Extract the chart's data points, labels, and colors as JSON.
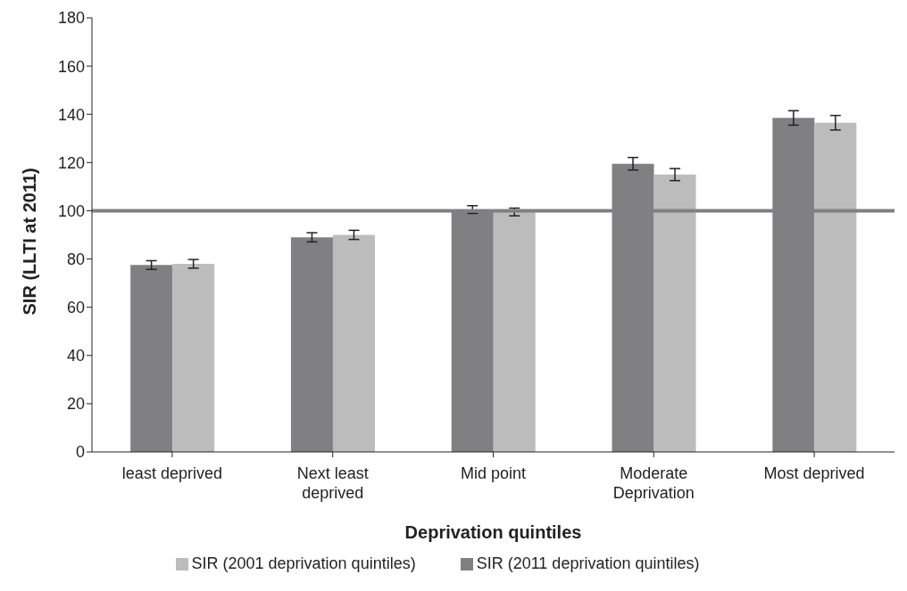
{
  "chart_data": {
    "type": "bar",
    "xlabel": "Deprivation quintiles",
    "ylabel": "SIR (LLTI at 2011)",
    "categories": [
      "least deprived",
      "Next least deprived",
      "Mid point",
      "Moderate Deprivation",
      "Most deprived"
    ],
    "series": [
      {
        "name": "SIR (2011 deprivation quintiles)",
        "color": "#808083",
        "values": [
          77.5,
          89,
          100.5,
          119.5,
          138.5
        ],
        "errors": [
          1.8,
          1.9,
          1.6,
          2.6,
          3
        ]
      },
      {
        "name": "SIR (2001 deprivation quintiles)",
        "color": "#bcbcbd",
        "values": [
          78,
          90,
          99.5,
          115,
          136.5
        ],
        "errors": [
          1.8,
          1.9,
          1.6,
          2.5,
          3
        ]
      }
    ],
    "ylim": [
      0,
      180
    ],
    "yticks": [
      0,
      20,
      40,
      60,
      80,
      100,
      120,
      140,
      160,
      180
    ],
    "grid": false,
    "legend": "bottom",
    "ref_lines": [
      {
        "axis": "y",
        "value": 100,
        "color": "#808080"
      }
    ]
  }
}
